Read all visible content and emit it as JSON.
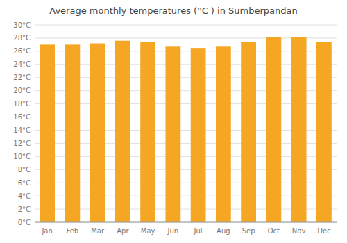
{
  "chart_data": {
    "type": "bar",
    "title": "Average monthly temperatures (°C ) in Sumberpandan",
    "categories": [
      "Jan",
      "Feb",
      "Mar",
      "Apr",
      "May",
      "Jun",
      "Jul",
      "Aug",
      "Sep",
      "Oct",
      "Nov",
      "Dec"
    ],
    "values": [
      27.0,
      27.0,
      27.2,
      27.6,
      27.4,
      26.8,
      26.5,
      26.8,
      27.4,
      28.2,
      28.2,
      27.4
    ],
    "color": "#F5A623",
    "ylim": [
      0,
      30
    ],
    "yticks": [
      {
        "value": 0,
        "label": "0°C"
      },
      {
        "value": 2,
        "label": "2°C"
      },
      {
        "value": 4,
        "label": "4°C"
      },
      {
        "value": 6,
        "label": "6°C"
      },
      {
        "value": 8,
        "label": "8°C"
      },
      {
        "value": 10,
        "label": "10°C"
      },
      {
        "value": 12,
        "label": "12°C"
      },
      {
        "value": 14,
        "label": "14°C"
      },
      {
        "value": 16,
        "label": "16°C"
      },
      {
        "value": 18,
        "label": "18°C"
      },
      {
        "value": 20,
        "label": "20°C"
      },
      {
        "value": 22,
        "label": "22°C"
      },
      {
        "value": 24,
        "label": "24°C"
      },
      {
        "value": 26,
        "label": "26°C"
      },
      {
        "value": 28,
        "label": "28°C"
      },
      {
        "value": 30,
        "label": "30°C"
      }
    ],
    "grid": true
  }
}
